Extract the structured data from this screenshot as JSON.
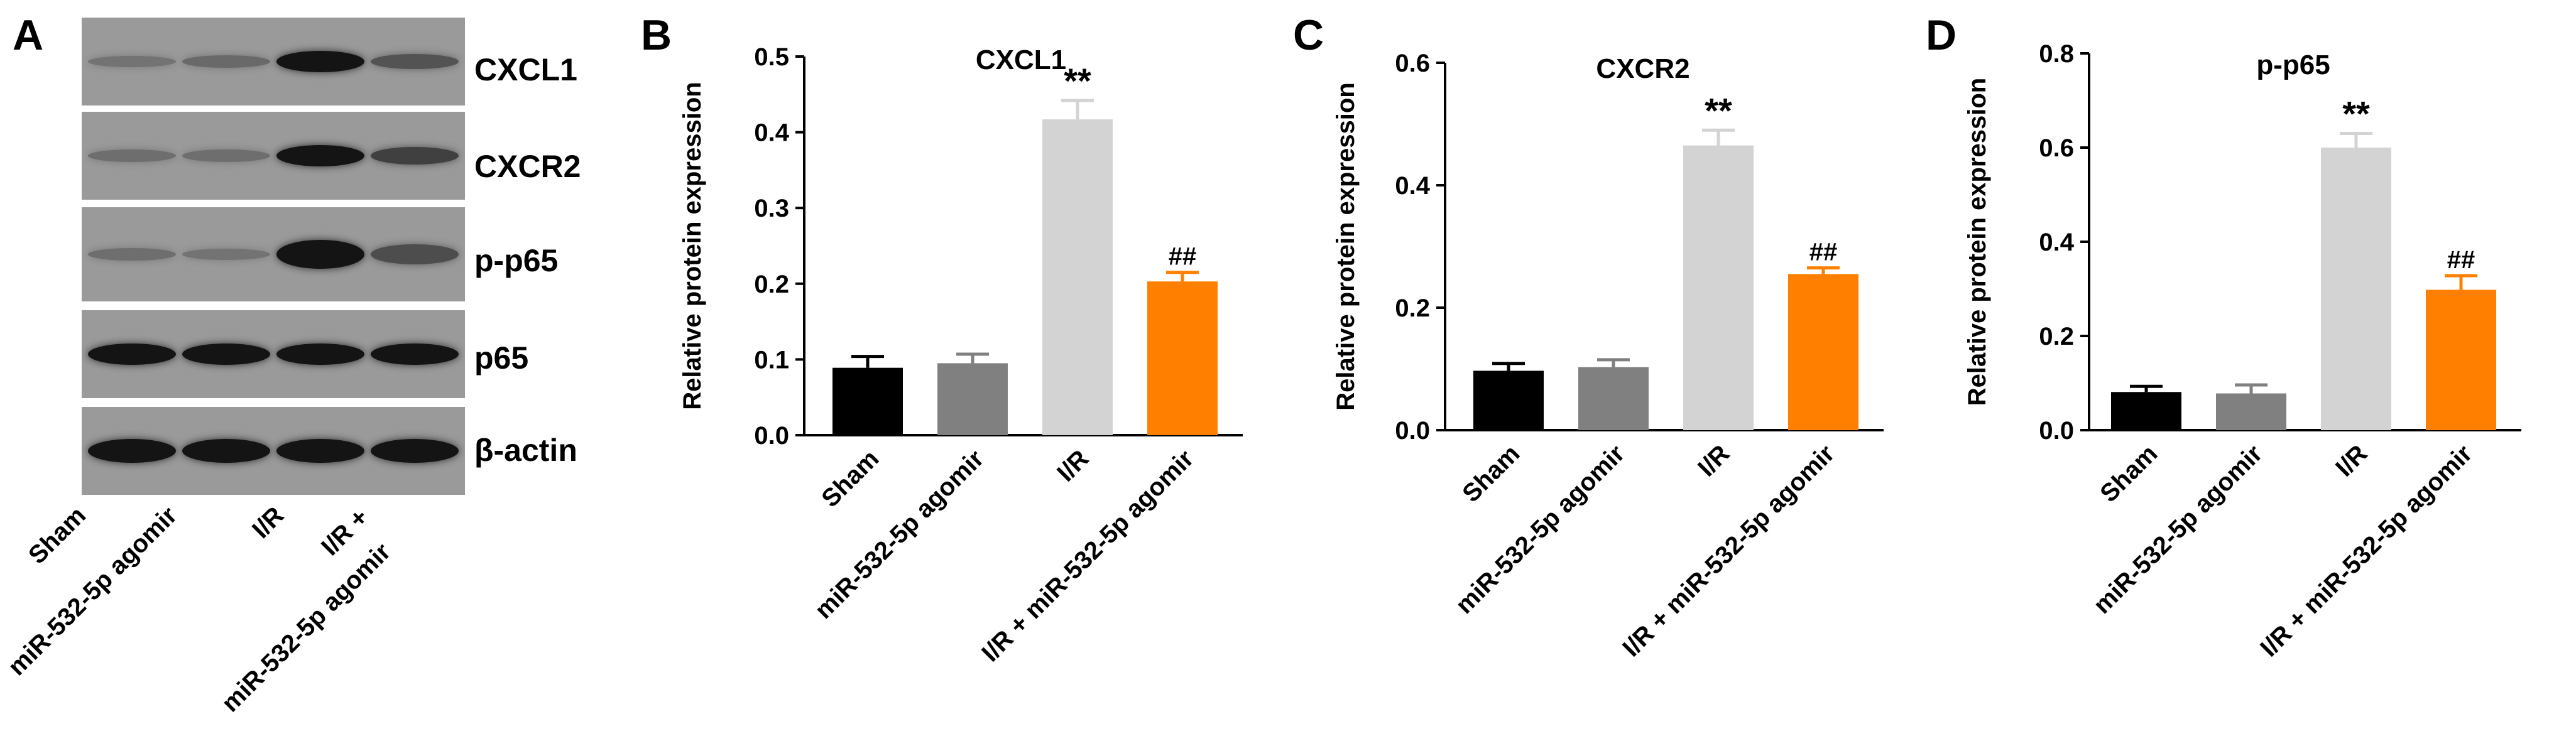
{
  "panels": {
    "A": "A",
    "B": "B",
    "C": "C",
    "D": "D"
  },
  "blot": {
    "proteins": [
      "CXCL1",
      "CXCR2",
      "p-p65",
      "p65",
      "β-actin"
    ],
    "lanes": [
      {
        "line1": "Sham",
        "line2": ""
      },
      {
        "line1": "miR-532-5p agomir",
        "line2": ""
      },
      {
        "line1": "I/R",
        "line2": ""
      },
      {
        "line1": "I/R +",
        "line2": "miR-532-5p agomir"
      }
    ]
  },
  "colors": {
    "bars": [
      "#000000",
      "#808080",
      "#d3d3d3",
      "#ff8000"
    ]
  },
  "chart_data": [
    {
      "type": "bar",
      "title": "CXCL1",
      "ylabel": "Relative protein expression",
      "ylim": [
        0,
        0.5
      ],
      "yticks": [
        "0.0",
        "0.1",
        "0.2",
        "0.3",
        "0.4",
        "0.5"
      ],
      "categories": [
        "Sham",
        "miR-532-5p agomir",
        "I/R",
        "I/R + miR-532-5p agomir"
      ],
      "values": [
        0.089,
        0.095,
        0.417,
        0.203
      ],
      "errors": [
        0.015,
        0.012,
        0.025,
        0.012
      ],
      "annotations": [
        "",
        "",
        "**",
        "##"
      ]
    },
    {
      "type": "bar",
      "title": "CXCR2",
      "ylabel": "Relative protein expression",
      "ylim": [
        0,
        0.6
      ],
      "yticks": [
        "0.0",
        "0.2",
        "0.4",
        "0.6"
      ],
      "categories": [
        "Sham",
        "miR-532-5p agomir",
        "I/R",
        "I/R + miR-532-5p agomir"
      ],
      "values": [
        0.097,
        0.103,
        0.465,
        0.255
      ],
      "errors": [
        0.012,
        0.012,
        0.025,
        0.01
      ],
      "annotations": [
        "",
        "",
        "**",
        "##"
      ]
    },
    {
      "type": "bar",
      "title": "p-p65",
      "ylabel": "Relative protein expression",
      "ylim": [
        0,
        0.8
      ],
      "yticks": [
        "0.0",
        "0.2",
        "0.4",
        "0.6",
        "0.8"
      ],
      "categories": [
        "Sham",
        "miR-532-5p agomir",
        "I/R",
        "I/R + miR-532-5p agomir"
      ],
      "values": [
        0.081,
        0.078,
        0.6,
        0.298
      ],
      "errors": [
        0.012,
        0.018,
        0.03,
        0.03
      ],
      "annotations": [
        "",
        "",
        "**",
        "##"
      ]
    }
  ]
}
